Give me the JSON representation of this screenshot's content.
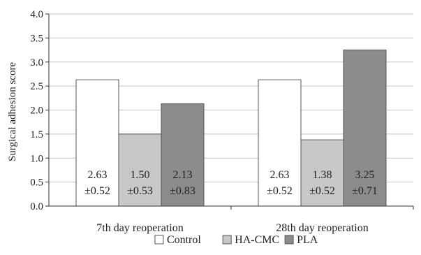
{
  "chart_data": {
    "type": "bar",
    "categories": [
      "7th day reoperation",
      "28th day reoperation"
    ],
    "series": [
      {
        "name": "Control",
        "values": [
          2.63,
          2.63
        ],
        "sd": [
          0.52,
          0.52
        ],
        "color": "#ffffff"
      },
      {
        "name": "HA-CMC",
        "values": [
          1.5,
          1.38
        ],
        "sd": [
          0.53,
          0.52
        ],
        "color": "#c8c8c8"
      },
      {
        "name": "PLA",
        "values": [
          2.13,
          3.25
        ],
        "sd": [
          0.83,
          0.71
        ],
        "color": "#8c8c8c"
      }
    ],
    "data_labels": [
      [
        [
          "2.63",
          "±0.52"
        ],
        [
          "2.63",
          "±0.52"
        ]
      ],
      [
        [
          "1.50",
          "±0.53"
        ],
        [
          "1.38",
          "±0.52"
        ]
      ],
      [
        [
          "2.13",
          "±0.83"
        ],
        [
          "3.25",
          "±0.71"
        ]
      ]
    ],
    "ylabel": "Surgical adhesion score",
    "ylim": [
      0,
      4
    ],
    "yticks": [
      "0.0",
      "0.5",
      "1.0",
      "1.5",
      "2.0",
      "2.5",
      "3.0",
      "3.5",
      "4.0"
    ],
    "grid": true,
    "legend_position": "bottom-center"
  }
}
